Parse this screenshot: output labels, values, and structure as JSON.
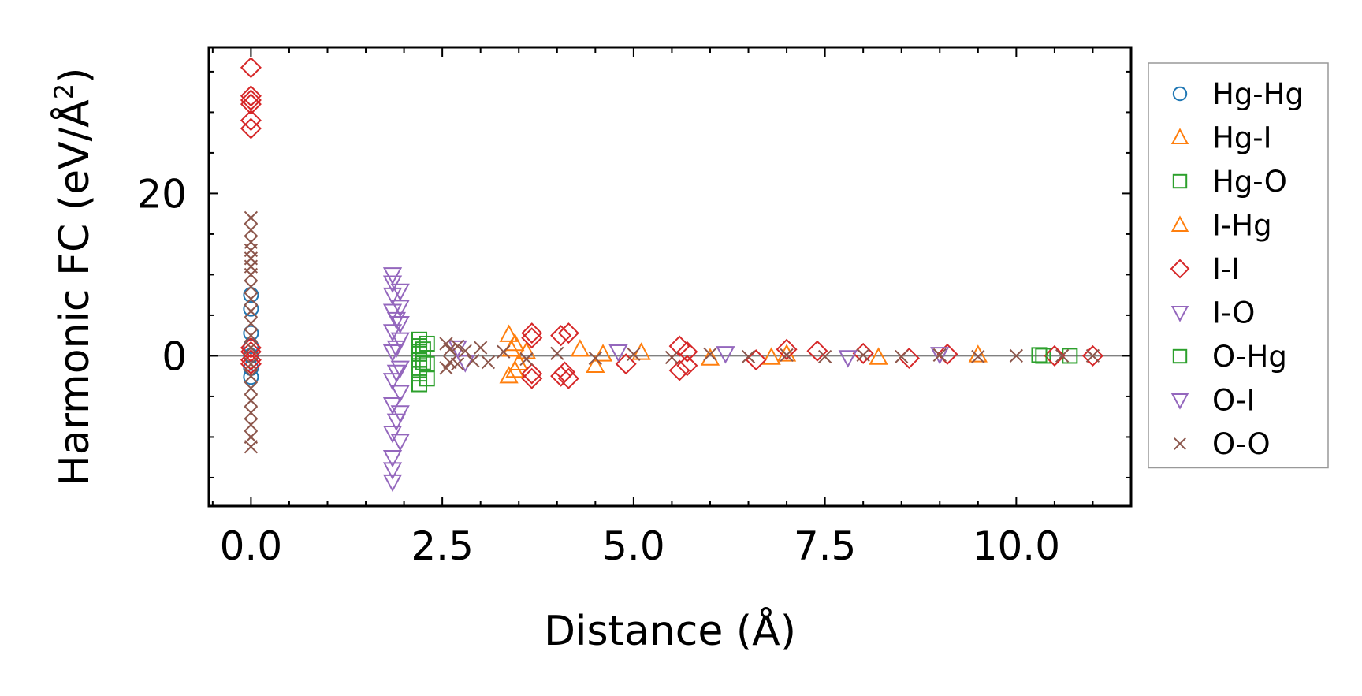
{
  "chart_data": {
    "type": "scatter",
    "title": "",
    "xlabel": "Distance (Å)",
    "ylabel_main": "Harmonic FC (eV/Å",
    "ylabel_sup": "2",
    "ylabel_tail": ")",
    "xlim": [
      -0.55,
      11.5
    ],
    "ylim": [
      -18.5,
      38.0
    ],
    "xticks": [
      0.0,
      2.5,
      5.0,
      7.5,
      10.0
    ],
    "xtick_labels": [
      "0.0",
      "2.5",
      "5.0",
      "7.5",
      "10.0"
    ],
    "yticks": [
      0,
      20
    ],
    "ytick_labels": [
      "0",
      "20"
    ],
    "zero_line": true,
    "legend_position": "right-outside",
    "series": [
      {
        "name": "Hg-Hg",
        "color": "#1f77b4",
        "marker": "circle",
        "filled_far": false,
        "points": [
          [
            0,
            0
          ],
          [
            0,
            2.8
          ],
          [
            0,
            -2.6
          ],
          [
            0,
            7.5
          ],
          [
            0,
            -1.5
          ],
          [
            0,
            1.2
          ],
          [
            0,
            5.8
          ]
        ]
      },
      {
        "name": "Hg-I",
        "color": "#ff7f0e",
        "marker": "triangle-up",
        "points": [
          [
            3.37,
            2.6
          ],
          [
            3.37,
            -2.5
          ],
          [
            3.45,
            1.5
          ],
          [
            3.45,
            -1.8
          ],
          [
            3.6,
            0.5
          ],
          [
            4.3,
            0.8
          ],
          [
            4.5,
            -1.2
          ],
          [
            5.1,
            0.4
          ],
          [
            6.0,
            -0.3
          ],
          [
            7.0,
            0.2
          ],
          [
            8.2,
            -0.2
          ],
          [
            9.5,
            0.1
          ]
        ]
      },
      {
        "name": "Hg-O",
        "color": "#2ca02c",
        "marker": "square",
        "points": [
          [
            2.2,
            2.0
          ],
          [
            2.2,
            1.2
          ],
          [
            2.2,
            0.5
          ],
          [
            2.2,
            -0.5
          ],
          [
            2.2,
            -1.5
          ],
          [
            2.2,
            -2.2
          ],
          [
            2.2,
            -3.5
          ],
          [
            2.3,
            1.5
          ],
          [
            2.3,
            -1.0
          ],
          [
            2.3,
            -2.8
          ],
          [
            10.35,
            0
          ],
          [
            10.7,
            0
          ]
        ]
      },
      {
        "name": "I-Hg",
        "color": "#ff7f0e",
        "marker": "triangle-up",
        "points": [
          [
            3.4,
            0.8
          ],
          [
            3.5,
            -0.9
          ],
          [
            4.6,
            0.2
          ],
          [
            6.8,
            -0.2
          ]
        ]
      },
      {
        "name": "I-I",
        "color": "#d62728",
        "marker": "diamond",
        "points": [
          [
            0,
            35.5
          ],
          [
            0,
            32.0
          ],
          [
            0,
            31.5
          ],
          [
            0,
            31.0
          ],
          [
            0,
            29.0
          ],
          [
            0,
            28.0
          ],
          [
            0,
            0.5
          ],
          [
            0,
            -0.5
          ],
          [
            0,
            1.0
          ],
          [
            0,
            -1.0
          ],
          [
            3.67,
            2.8
          ],
          [
            3.67,
            2.2
          ],
          [
            3.67,
            -2.2
          ],
          [
            3.67,
            -2.8
          ],
          [
            4.05,
            2.5
          ],
          [
            4.05,
            -2.5
          ],
          [
            4.15,
            2.8
          ],
          [
            4.15,
            -2.8
          ],
          [
            4.1,
            -2.0
          ],
          [
            5.6,
            1.2
          ],
          [
            5.6,
            -1.8
          ],
          [
            5.7,
            -1.2
          ],
          [
            5.7,
            0.5
          ],
          [
            4.9,
            -1.0
          ],
          [
            6.6,
            -0.5
          ],
          [
            7.0,
            0.8
          ],
          [
            7.4,
            0.6
          ],
          [
            8.0,
            0.3
          ],
          [
            8.6,
            -0.3
          ],
          [
            9.1,
            0.2
          ],
          [
            10.5,
            0
          ],
          [
            11.0,
            0
          ]
        ]
      },
      {
        "name": "I-O",
        "color": "#9467bd",
        "marker": "triangle-down",
        "points": [
          [
            1.85,
            10.0
          ],
          [
            1.85,
            9.0
          ],
          [
            1.85,
            7.5
          ],
          [
            1.85,
            5.5
          ],
          [
            1.85,
            3.0
          ],
          [
            1.85,
            0.5
          ],
          [
            1.85,
            -3.0
          ],
          [
            1.85,
            -6.0
          ],
          [
            1.85,
            -9.5
          ],
          [
            1.85,
            -12.5
          ],
          [
            1.85,
            -15.5
          ],
          [
            1.85,
            -14.0
          ],
          [
            1.95,
            8.0
          ],
          [
            1.95,
            6.0
          ],
          [
            1.95,
            4.0
          ],
          [
            1.95,
            2.0
          ],
          [
            1.95,
            -1.5
          ],
          [
            1.95,
            -4.5
          ],
          [
            1.95,
            -7.0
          ],
          [
            1.95,
            -10.5
          ],
          [
            2.7,
            1.0
          ],
          [
            2.8,
            -0.8
          ],
          [
            4.8,
            0.5
          ],
          [
            6.2,
            0.3
          ],
          [
            7.8,
            -0.2
          ],
          [
            9.0,
            0.2
          ]
        ]
      },
      {
        "name": "O-Hg",
        "color": "#2ca02c",
        "marker": "square",
        "points": [
          [
            2.25,
            0.8
          ],
          [
            2.25,
            -0.8
          ],
          [
            10.3,
            0.1
          ]
        ]
      },
      {
        "name": "O-I",
        "color": "#9467bd",
        "marker": "triangle-down",
        "points": [
          [
            1.9,
            1.0
          ],
          [
            1.9,
            -2.0
          ],
          [
            1.9,
            4.5
          ],
          [
            1.9,
            -8.0
          ]
        ]
      },
      {
        "name": "O-O",
        "color": "#8c564b",
        "marker": "x",
        "points": [
          [
            0,
            17.0
          ],
          [
            0,
            15.5
          ],
          [
            0,
            14.0
          ],
          [
            0,
            13.0
          ],
          [
            0,
            12.0
          ],
          [
            0,
            11.0
          ],
          [
            0,
            10.0
          ],
          [
            0,
            8.5
          ],
          [
            0,
            7.0
          ],
          [
            0,
            5.5
          ],
          [
            0,
            4.0
          ],
          [
            0,
            2.5
          ],
          [
            0,
            1.0
          ],
          [
            0,
            -1.0
          ],
          [
            0,
            -2.5
          ],
          [
            0,
            -4.0
          ],
          [
            0,
            -5.5
          ],
          [
            0,
            -7.0
          ],
          [
            0,
            -8.5
          ],
          [
            0,
            -10.0
          ],
          [
            0,
            -11.2
          ],
          [
            2.55,
            1.5
          ],
          [
            2.55,
            -1.5
          ],
          [
            2.6,
            0.8
          ],
          [
            2.6,
            -0.8
          ],
          [
            2.7,
            1.2
          ],
          [
            2.7,
            -1.0
          ],
          [
            2.8,
            0.6
          ],
          [
            2.9,
            -0.6
          ],
          [
            3.0,
            1.0
          ],
          [
            3.1,
            -0.8
          ],
          [
            3.3,
            0.5
          ],
          [
            3.6,
            -0.4
          ],
          [
            4.0,
            0.3
          ],
          [
            4.5,
            -0.3
          ],
          [
            5.0,
            0.2
          ],
          [
            5.5,
            -0.2
          ],
          [
            6.0,
            0.2
          ],
          [
            6.5,
            -0.1
          ],
          [
            7.0,
            0.1
          ],
          [
            7.5,
            -0.1
          ],
          [
            8.0,
            0.1
          ],
          [
            8.5,
            -0.1
          ],
          [
            9.0,
            0.1
          ],
          [
            9.5,
            -0.1
          ],
          [
            10.0,
            0.0
          ],
          [
            10.6,
            0.0
          ],
          [
            11.0,
            0.0
          ]
        ]
      }
    ]
  }
}
